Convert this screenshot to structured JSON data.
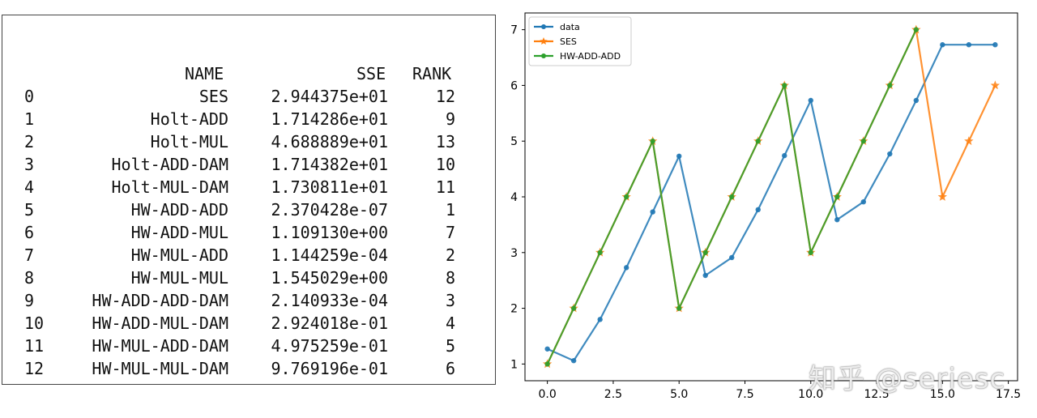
{
  "table": {
    "columns": [
      "NAME",
      "SSE",
      "RANK"
    ],
    "rows": [
      {
        "idx": "0",
        "name": "SES",
        "sse": "2.944375e+01",
        "rank": "12"
      },
      {
        "idx": "1",
        "name": "Holt-ADD",
        "sse": "1.714286e+01",
        "rank": "9"
      },
      {
        "idx": "2",
        "name": "Holt-MUL",
        "sse": "4.688889e+01",
        "rank": "13"
      },
      {
        "idx": "3",
        "name": "Holt-ADD-DAM",
        "sse": "1.714382e+01",
        "rank": "10"
      },
      {
        "idx": "4",
        "name": "Holt-MUL-DAM",
        "sse": "1.730811e+01",
        "rank": "11"
      },
      {
        "idx": "5",
        "name": "HW-ADD-ADD",
        "sse": "2.370428e-07",
        "rank": "1"
      },
      {
        "idx": "6",
        "name": "HW-ADD-MUL",
        "sse": "1.109130e+00",
        "rank": "7"
      },
      {
        "idx": "7",
        "name": "HW-MUL-ADD",
        "sse": "1.144259e-04",
        "rank": "2"
      },
      {
        "idx": "8",
        "name": "HW-MUL-MUL",
        "sse": "1.545029e+00",
        "rank": "8"
      },
      {
        "idx": "9",
        "name": "HW-ADD-ADD-DAM",
        "sse": "2.140933e-04",
        "rank": "3"
      },
      {
        "idx": "10",
        "name": "HW-ADD-MUL-DAM",
        "sse": "2.924018e-01",
        "rank": "4"
      },
      {
        "idx": "11",
        "name": "HW-MUL-ADD-DAM",
        "sse": "4.975259e-01",
        "rank": "5"
      },
      {
        "idx": "12",
        "name": "HW-MUL-MUL-DAM",
        "sse": "9.769196e-01",
        "rank": "6"
      }
    ]
  },
  "chart_data": {
    "type": "line",
    "title": "",
    "xlabel": "",
    "ylabel": "",
    "xlim": [
      -0.85,
      17.85
    ],
    "ylim": [
      0.7,
      7.3
    ],
    "xticks": [
      0.0,
      2.5,
      5.0,
      7.5,
      10.0,
      12.5,
      15.0,
      17.5
    ],
    "xtick_labels": [
      "0.0",
      "2.5",
      "5.0",
      "7.5",
      "10.0",
      "12.5",
      "15.0",
      "17.5"
    ],
    "yticks": [
      1,
      2,
      3,
      4,
      5,
      6,
      7
    ],
    "ytick_labels": [
      "1",
      "2",
      "3",
      "4",
      "5",
      "6",
      "7"
    ],
    "legend_position": "top-left",
    "grid": false,
    "series": [
      {
        "name": "data",
        "color": "#1f77b4",
        "marker": "dot",
        "x": [
          0,
          1,
          2,
          3,
          4,
          5,
          6,
          7,
          8,
          9,
          10,
          11,
          12,
          13,
          14,
          15,
          16,
          17
        ],
        "y": [
          1.27,
          1.06,
          1.8,
          2.73,
          3.73,
          4.73,
          2.59,
          2.91,
          3.77,
          4.74,
          5.73,
          3.59,
          3.91,
          4.77,
          5.73,
          6.73,
          6.73,
          6.73
        ]
      },
      {
        "name": "SES",
        "color": "#ff7f0e",
        "marker": "star",
        "x": [
          0,
          1,
          2,
          3,
          4,
          5,
          6,
          7,
          8,
          9,
          10,
          11,
          12,
          13,
          14,
          15,
          16,
          17
        ],
        "y": [
          1,
          2,
          3,
          4,
          5,
          2,
          3,
          4,
          5,
          6,
          3,
          4,
          5,
          6,
          7,
          4,
          5,
          6
        ]
      },
      {
        "name": "HW-ADD-ADD",
        "color": "#2ca02c",
        "marker": "dot",
        "x": [
          0,
          1,
          2,
          3,
          4,
          5,
          6,
          7,
          8,
          9,
          10,
          11,
          12,
          13,
          14
        ],
        "y": [
          1,
          2,
          3,
          4,
          5,
          2,
          3,
          4,
          5,
          6,
          3,
          4,
          5,
          6,
          7
        ]
      }
    ]
  },
  "watermark": "知乎 @seriesc"
}
